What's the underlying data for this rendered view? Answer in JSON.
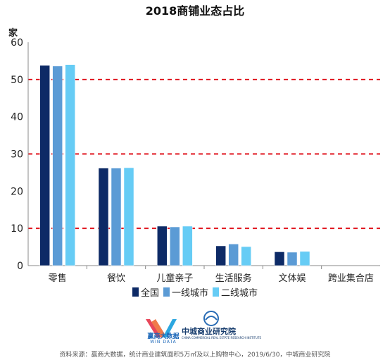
{
  "chart_data": {
    "type": "bar",
    "title": "2018商铺业态占比",
    "ylabel": "家",
    "xlabel": "",
    "ylim": [
      0,
      60
    ],
    "yticks": [
      0,
      10,
      20,
      30,
      40,
      50,
      60
    ],
    "reference_lines": [
      10,
      30,
      50
    ],
    "categories": [
      "零售",
      "餐饮",
      "儿童亲子",
      "生活服务",
      "文体娱",
      "跨业集合店"
    ],
    "series": [
      {
        "name": "全国",
        "color": "#0d2a66",
        "values": [
          53.8,
          26.2,
          10.6,
          5.3,
          3.7,
          0
        ]
      },
      {
        "name": "一线城市",
        "color": "#5b9bd5",
        "values": [
          53.6,
          26.2,
          10.4,
          5.8,
          3.6,
          0
        ]
      },
      {
        "name": "二线城市",
        "color": "#66ccf5",
        "values": [
          54.0,
          26.3,
          10.6,
          5.1,
          3.8,
          0
        ]
      }
    ],
    "grid": false,
    "legend_position": "bottom"
  },
  "logos": {
    "win_cn": "赢商大数据",
    "win_en": "WIN DATA",
    "cc_cn": "中城商业研究院",
    "cc_en": "CHINA COMMERCIAL REAL ESTATE RESEARCH INSTITUTE"
  },
  "source_note": "资料来源：赢商大数据，统计商业建筑面积5万㎡及以上购物中心，2019/6/30，中城商业研究院"
}
